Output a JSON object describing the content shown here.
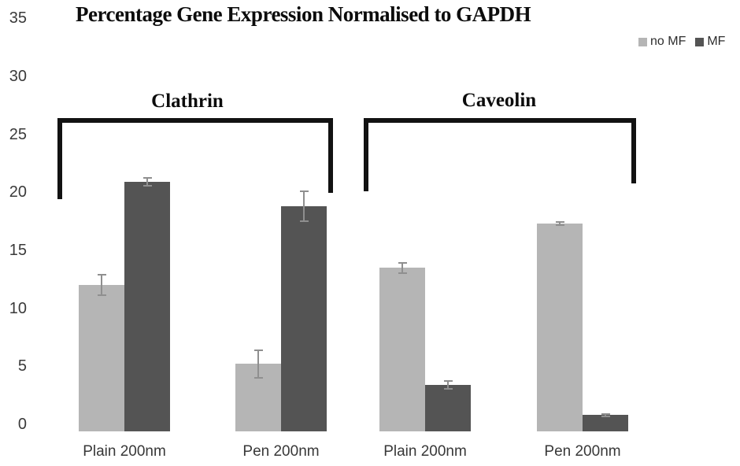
{
  "page": {
    "background": "#ffffff"
  },
  "chart_data": {
    "type": "bar",
    "title": "Percentage Gene Expression Normalised to GAPDH",
    "group_labels": [
      "Clathrin",
      "Caveolin"
    ],
    "categories": [
      "Plain 200nm",
      "Pen 200nm",
      "Plain 200nm",
      "Pen 200nm"
    ],
    "category_group_index": [
      0,
      0,
      1,
      1
    ],
    "series": [
      {
        "name": "no MF",
        "color": "#b5b5b5",
        "values": [
          12.0,
          5.2,
          13.5,
          17.3
        ],
        "errors": [
          0.9,
          1.2,
          0.45,
          0.15
        ]
      },
      {
        "name": "MF",
        "color": "#545454",
        "values": [
          20.9,
          18.8,
          3.4,
          0.8
        ],
        "errors": [
          0.35,
          1.3,
          0.35,
          0.1
        ]
      }
    ],
    "xlabel": "",
    "ylabel": "",
    "ylim": [
      0,
      35
    ],
    "yticks": [
      0,
      5,
      10,
      15,
      20,
      25,
      30,
      35
    ],
    "grid": false,
    "axis_lines": false,
    "legend_position": "top-right",
    "error_bars": true,
    "error_bar_color": "#8f8f8f"
  }
}
